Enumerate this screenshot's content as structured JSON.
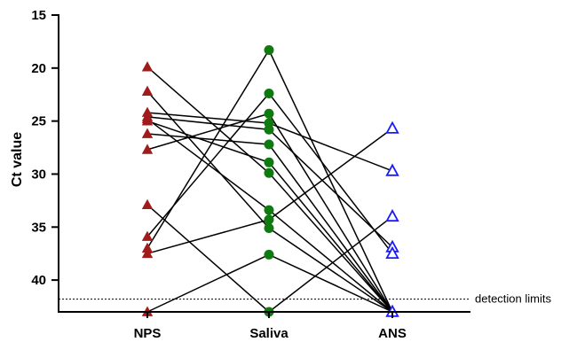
{
  "chart_data": {
    "type": "scatter",
    "ylabel": "Ct value",
    "xlabel": "",
    "y_inverted": true,
    "ylim": [
      15,
      43
    ],
    "yticks": [
      15,
      20,
      25,
      30,
      35,
      40
    ],
    "categories": [
      "NPS",
      "Saliva",
      "ANS"
    ],
    "series": [
      {
        "category": "NPS",
        "marker": "filled-triangle",
        "color": "#a01c1c",
        "values": [
          19.9,
          22.2,
          24.2,
          24.6,
          24.8,
          25.0,
          26.2,
          27.7,
          32.9,
          35.9,
          37.0,
          37.5,
          43.0
        ]
      },
      {
        "category": "Saliva",
        "marker": "filled-circle",
        "color": "#0f7a0f",
        "values": [
          18.3,
          22.4,
          24.3,
          25.2,
          25.8,
          27.2,
          28.9,
          29.9,
          33.4,
          34.3,
          35.1,
          37.6,
          43.0
        ]
      },
      {
        "category": "ANS",
        "marker": "open-triangle",
        "color": "#1a1aff",
        "values": [
          25.7,
          29.7,
          34.0,
          36.9,
          37.5,
          43.0
        ]
      }
    ],
    "connections": [
      {
        "NPS": 19.9,
        "Saliva": 29.9,
        "ANS": 43.0
      },
      {
        "NPS": 22.2,
        "Saliva": 35.1,
        "ANS": 43.0
      },
      {
        "NPS": 24.2,
        "Saliva": 25.2,
        "ANS": 29.7
      },
      {
        "NPS": 24.6,
        "Saliva": 25.8,
        "ANS": 36.9
      },
      {
        "NPS": 24.8,
        "Saliva": 33.4,
        "ANS": 43.0
      },
      {
        "NPS": 25.0,
        "Saliva": 28.9,
        "ANS": 43.0
      },
      {
        "NPS": 26.2,
        "Saliva": 27.2,
        "ANS": 43.0
      },
      {
        "NPS": 27.7,
        "Saliva": 24.3,
        "ANS": 43.0
      },
      {
        "NPS": 32.9,
        "Saliva": 43.0,
        "ANS": 34.0
      },
      {
        "NPS": 35.9,
        "Saliva": 22.4,
        "ANS": 37.5
      },
      {
        "NPS": 37.0,
        "Saliva": 18.3,
        "ANS": 43.0
      },
      {
        "NPS": 37.5,
        "Saliva": 34.3,
        "ANS": 25.7
      },
      {
        "NPS": 43.0,
        "Saliva": 37.6,
        "ANS": 43.0
      }
    ],
    "reference_line": {
      "value": 41.8,
      "label": "detection limits",
      "style": "dotted"
    },
    "grid": false
  }
}
